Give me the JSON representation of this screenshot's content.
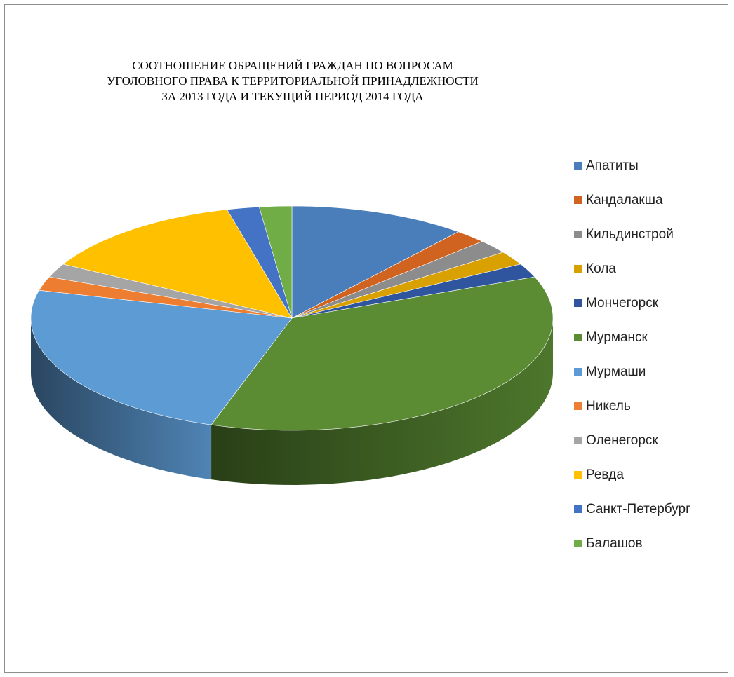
{
  "chart_data": {
    "type": "pie",
    "title_lines": [
      "СООТНОШЕНИЕ ОБРАЩЕНИЙ ГРАЖДАН ПО ВОПРОСАМ",
      "УГОЛОВНОГО ПРАВА К ТЕРРИТОРИАЛЬНОЙ ПРИНАДЛЕЖНОСТИ",
      "ЗА 2013 ГОДА И ТЕКУЩИЙ ПЕРИОД 2014 ГОДА"
    ],
    "legend_position": "right",
    "slices": [
      {
        "label": "Апатиты",
        "value": 11,
        "color": "#4a7eba"
      },
      {
        "label": "Кандалакша",
        "value": 2,
        "color": "#d0631f"
      },
      {
        "label": "Кильдинстрой",
        "value": 2,
        "color": "#8c8c8c"
      },
      {
        "label": "Кола",
        "value": 2,
        "color": "#d9a100"
      },
      {
        "label": "Мончегорск",
        "value": 2,
        "color": "#2f559e"
      },
      {
        "label": "Мурманск",
        "value": 36,
        "color": "#5b8c34"
      },
      {
        "label": "Мурмаши",
        "value": 24,
        "color": "#5d9bd5"
      },
      {
        "label": "Никель",
        "value": 2,
        "color": "#ed7d31"
      },
      {
        "label": "Оленегорск",
        "value": 2,
        "color": "#a5a5a5"
      },
      {
        "label": "Ревда",
        "value": 13,
        "color": "#ffc000"
      },
      {
        "label": "Санкт-Петербург",
        "value": 2,
        "color": "#4472c4"
      },
      {
        "label": "Балашов",
        "value": 2,
        "color": "#70ad47"
      }
    ]
  }
}
